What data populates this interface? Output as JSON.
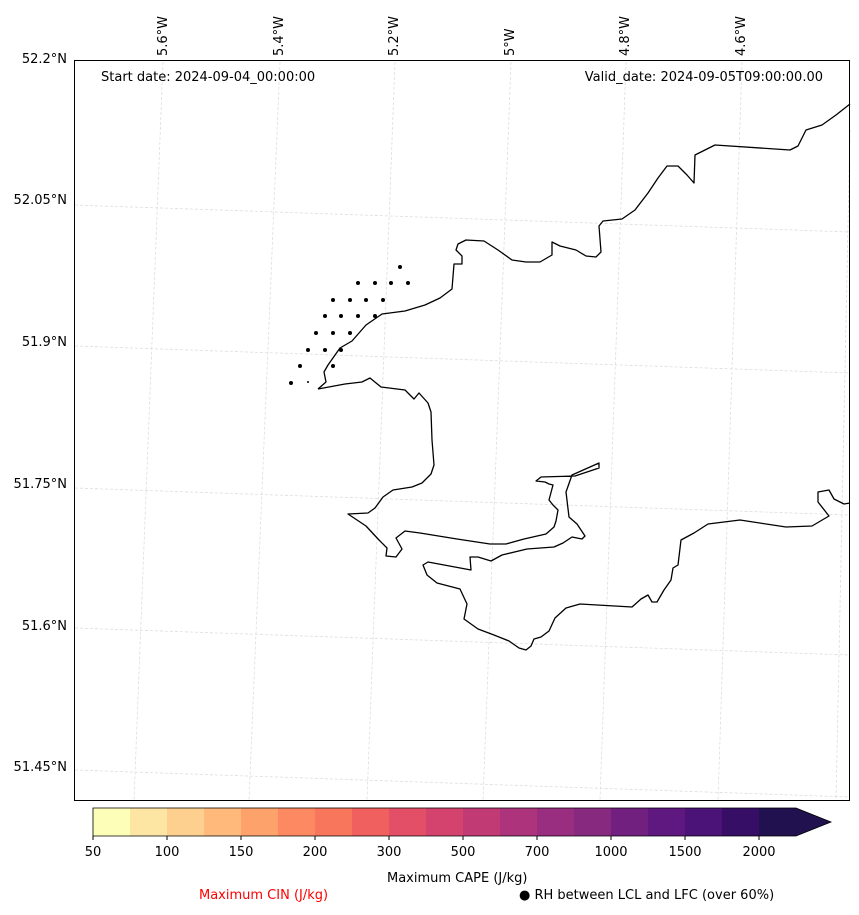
{
  "header": {
    "start_date": "Start date: 2024-09-04_00:00:00",
    "valid_date": "Valid_date: 2024-09-05T09:00:00.00"
  },
  "axes": {
    "longitude_ticks": [
      "5.6°W",
      "5.4°W",
      "5.2°W",
      "5°W",
      "4.8°W",
      "4.6°W"
    ],
    "latitude_ticks": [
      "52.2°N",
      "52.05°N",
      "51.9°N",
      "51.75°N",
      "51.6°N",
      "51.45°N"
    ]
  },
  "colorbar": {
    "levels": [
      "50",
      "100",
      "150",
      "200",
      "300",
      "500",
      "700",
      "1000",
      "1500",
      "2000"
    ],
    "colors": [
      "#fdffb9",
      "#fde5a3",
      "#fdd08f",
      "#feb97b",
      "#fea26b",
      "#fc8961",
      "#f8765c",
      "#ef605e",
      "#e34f66",
      "#d3436e",
      "#c13a73",
      "#ad347c",
      "#992d80",
      "#86297f",
      "#72207f",
      "#5f187f",
      "#4b1277",
      "#360e65",
      "#21114e"
    ],
    "extend": "max",
    "title": "Maximum CAPE (J/kg)"
  },
  "legend": {
    "cin_label": "Maximum CIN (J/kg)",
    "cin_color": "#ff0000",
    "rh_label": "● RH between LCL and LFC (over 60%)"
  },
  "map": {
    "region": "Pembrokeshire / South-West Wales coast",
    "gridlines": true,
    "coastline_color": "#000000"
  }
}
